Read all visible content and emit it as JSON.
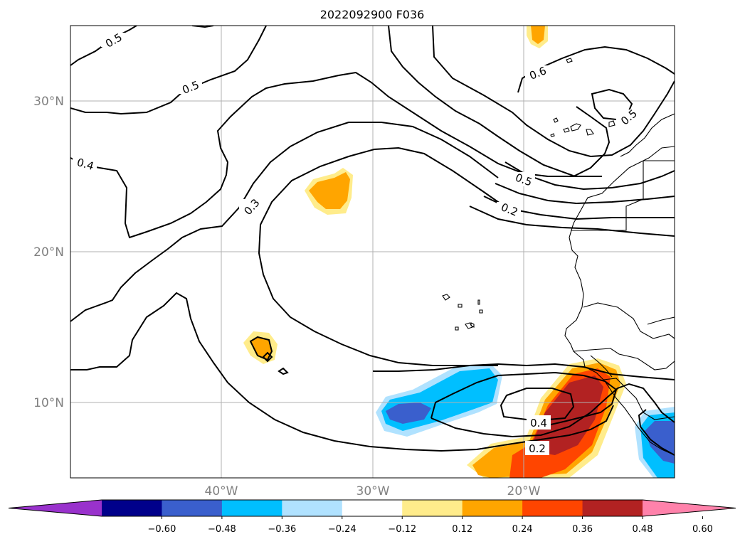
{
  "title": "2022092900 F036",
  "map": {
    "lat_labels": [
      "30°N",
      "20°N",
      "10°N"
    ],
    "lon_labels": [
      "40°W",
      "30°W",
      "20°W"
    ],
    "contour_labels": [
      "0.5",
      "0.5",
      "0.4",
      "0.3",
      "0.6",
      "0.5",
      "0.5",
      "0.2",
      "0.4",
      "0.2"
    ],
    "contour_color": "#000000",
    "gridline_color": "#b0b0b0"
  },
  "colorbar": {
    "ticks": [
      "−0.60",
      "−0.48",
      "−0.36",
      "−0.24",
      "−0.12",
      "0.12",
      "0.24",
      "0.36",
      "0.48",
      "0.60"
    ],
    "colors": [
      "#9932cc",
      "#00008b",
      "#3a5fcd",
      "#00bfff",
      "#b0e2ff",
      "#ffffff",
      "#ffec8b",
      "#ffa500",
      "#ff4500",
      "#b22222",
      "#ff82ab"
    ]
  },
  "fill_colors": {
    "light_yellow": "#ffec8b",
    "orange": "#ffa500",
    "orange_red": "#ff4500",
    "firebrick": "#b22222",
    "light_blue": "#b0e2ff",
    "deep_sky_blue": "#00bfff",
    "royal_blue": "#3a5fcd"
  }
}
